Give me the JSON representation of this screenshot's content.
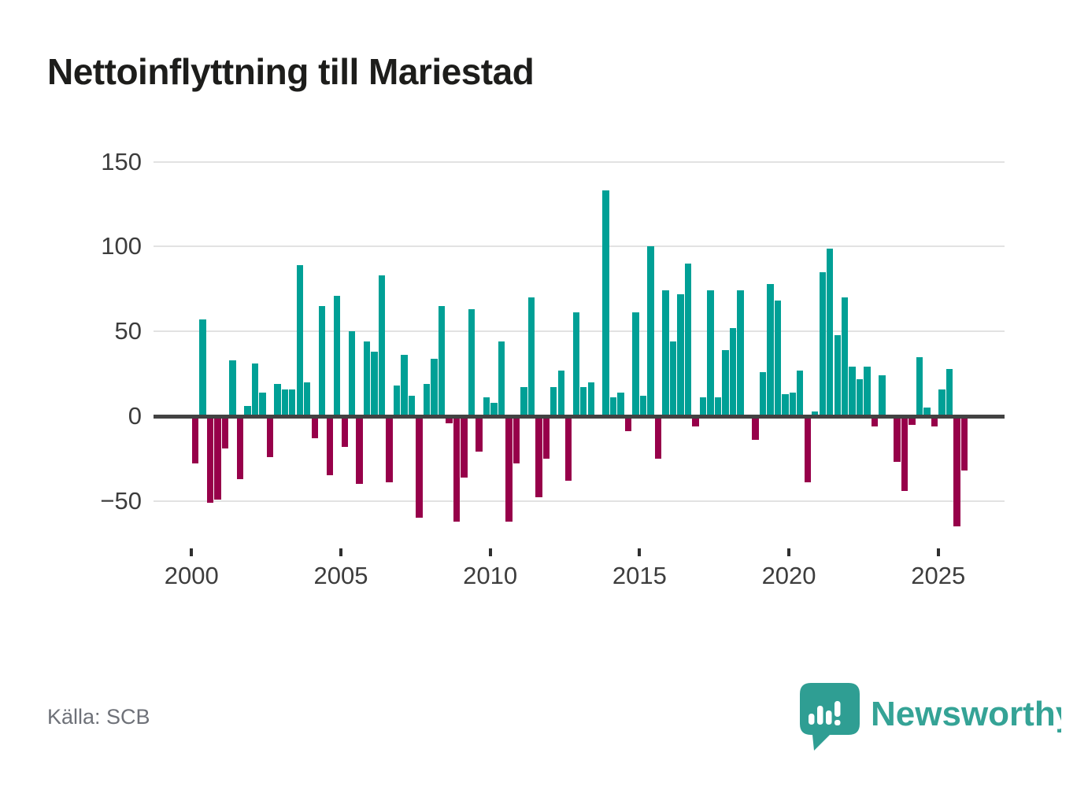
{
  "title": "Nettoinflyttning till Mariestad",
  "source": "Källa: SCB",
  "brand": {
    "name": "Newsworthy"
  },
  "colors": {
    "positive": "#00A096",
    "negative": "#97004A",
    "zero_line": "#424242",
    "grid": "#E2E2E2",
    "title": "#1D1D1B",
    "axis_text": "#3D3D3D",
    "muted": "#6E7178",
    "brand": "#35A396"
  },
  "chart_data": {
    "type": "bar",
    "title": "Nettoinflyttning till Mariestad",
    "frequency": "quarterly",
    "start": "2000Q1",
    "end": "2025Q4",
    "values": [
      -28,
      57,
      -51,
      -49,
      -19,
      33,
      -37,
      6,
      31,
      14,
      -24,
      19,
      16,
      16,
      89,
      20,
      -13,
      65,
      -35,
      71,
      -18,
      50,
      -40,
      44,
      38,
      83,
      -39,
      18,
      36,
      12,
      -60,
      19,
      34,
      65,
      -4,
      -62,
      -36,
      63,
      -21,
      11,
      8,
      44,
      -62,
      -28,
      17,
      70,
      -48,
      -25,
      17,
      27,
      -38,
      61,
      17,
      20,
      0,
      133,
      11,
      14,
      -9,
      61,
      12,
      100,
      -25,
      74,
      44,
      72,
      90,
      -6,
      11,
      74,
      11,
      39,
      52,
      74,
      0,
      -14,
      26,
      78,
      68,
      13,
      14,
      27,
      -39,
      3,
      85,
      99,
      48,
      70,
      29,
      22,
      29,
      -6,
      24,
      0,
      -27,
      -44,
      -5,
      35,
      5,
      -6,
      16,
      28,
      -65,
      -32
    ],
    "yticks": [
      150,
      100,
      50,
      0,
      -50
    ],
    "ytick_labels": [
      "150",
      "100",
      "50",
      "0",
      "−50"
    ],
    "xticks": [
      2000,
      2005,
      2010,
      2015,
      2020,
      2025
    ],
    "xtick_labels": [
      "2000",
      "2005",
      "2010",
      "2015",
      "2020",
      "2025"
    ],
    "ylim": [
      -70,
      157
    ],
    "grid": "horizontal",
    "legend": "none"
  }
}
